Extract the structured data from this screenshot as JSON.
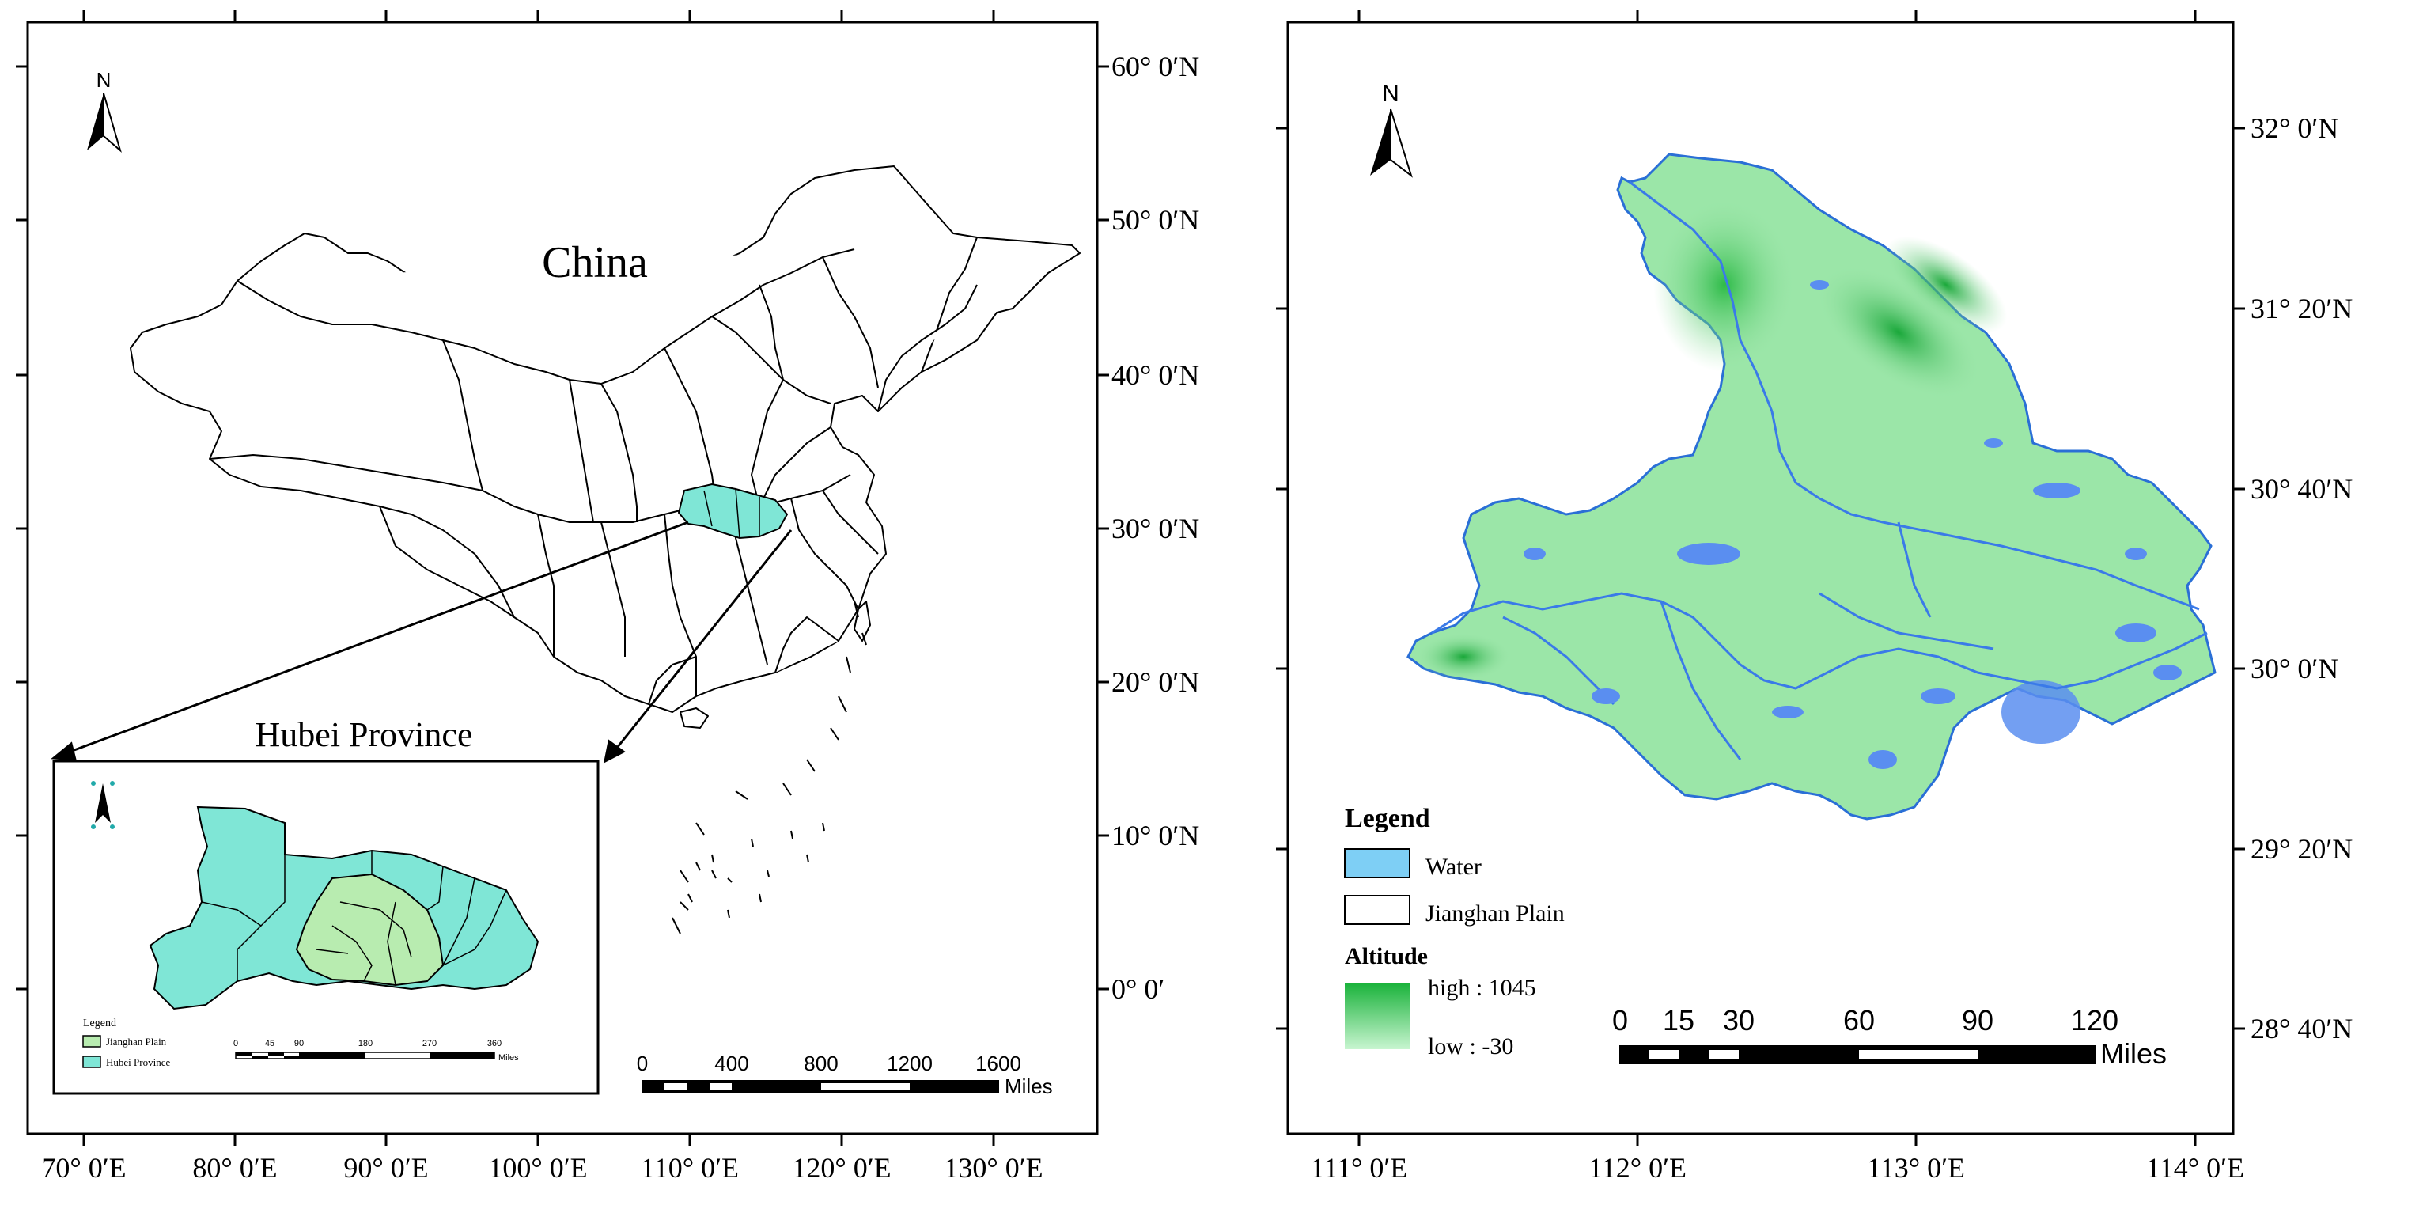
{
  "left_map": {
    "country_label": "China",
    "inset_title": "Hubei Province",
    "north_label": "N",
    "lat_labels": [
      "60° 0′N",
      "50° 0′N",
      "40° 0′N",
      "30° 0′N",
      "20° 0′N",
      "10° 0′N",
      "0° 0′"
    ],
    "lon_labels": [
      "70° 0′E",
      "80° 0′E",
      "90° 0′E",
      "100° 0′E",
      "110° 0′E",
      "120° 0′E",
      "130° 0′E"
    ],
    "scale_ticks": [
      "0",
      "400",
      "800",
      "1200",
      "1600"
    ],
    "scale_unit": "Miles",
    "inset": {
      "legend_title": "Legend",
      "legend_items": [
        "Jianghan Plain",
        "Hubei Province"
      ],
      "scale_ticks": [
        "0",
        "45",
        "90",
        "180",
        "270",
        "360"
      ],
      "scale_unit": "Miles"
    }
  },
  "right_map": {
    "north_label": "N",
    "lat_labels": [
      "32° 0′N",
      "31° 20′N",
      "30° 40′N",
      "30° 0′N",
      "29° 20′N",
      "28° 40′N"
    ],
    "lon_labels": [
      "111° 0′E",
      "112° 0′E",
      "113° 0′E",
      "114° 0′E"
    ],
    "legend_title": "Legend",
    "legend_items": [
      "Water",
      "Jianghan Plain"
    ],
    "altitude_title": "Altitude",
    "altitude_high": "high : 1045",
    "altitude_low": "low : -30",
    "scale_ticks": [
      "0",
      "15",
      "30",
      "60",
      "90",
      "120"
    ],
    "scale_unit": "Miles"
  },
  "colors": {
    "hubei_fill": "#7fe6d6",
    "jianghan_fill": "#b8ecb0",
    "water": "#5a8ef0",
    "terrain_low": "#b8f0c0",
    "terrain_high": "#19b23a"
  }
}
